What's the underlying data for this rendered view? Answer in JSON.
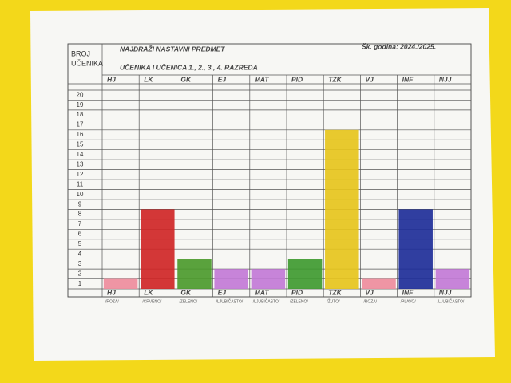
{
  "chart_data": {
    "type": "bar",
    "title": "NAJDRAŽI NASTAVNI PREDMET",
    "subtitle": "UČENIKA I UČENICA  1., 2., 3., 4. RAZREDA",
    "school_year": "Šk. godina:  2024./2025.",
    "y_label_lines": [
      "BROJ",
      "UČENIKA"
    ],
    "categories": [
      "HJ",
      "LK",
      "GK",
      "EJ",
      "MAT",
      "PID",
      "TZK",
      "VJ",
      "INF",
      "NJJ"
    ],
    "color_names": [
      "/ROZA/",
      "/CRVENO/",
      "/ZELENO/",
      "/LJUBIČASTO/",
      "/LJUBIČASTO/",
      "/ZELENO/",
      "/ŽUTO/",
      "/ROZA/",
      "/PLAVO/",
      "/LJUBIČASTO/"
    ],
    "values": [
      1,
      8,
      3,
      2,
      2,
      3,
      16,
      1,
      8,
      2
    ],
    "colors": [
      "#ee8c9c",
      "#cf2626",
      "#4c9a2c",
      "#c27ad6",
      "#c27ad6",
      "#3f9a30",
      "#e6c41c",
      "#ee8c9c",
      "#1e2e98",
      "#c27ad6"
    ],
    "ylim": [
      0,
      20
    ],
    "yticks": [
      1,
      2,
      3,
      4,
      5,
      6,
      7,
      8,
      9,
      10,
      11,
      12,
      13,
      14,
      15,
      16,
      17,
      18,
      19,
      20
    ],
    "grid": true
  }
}
